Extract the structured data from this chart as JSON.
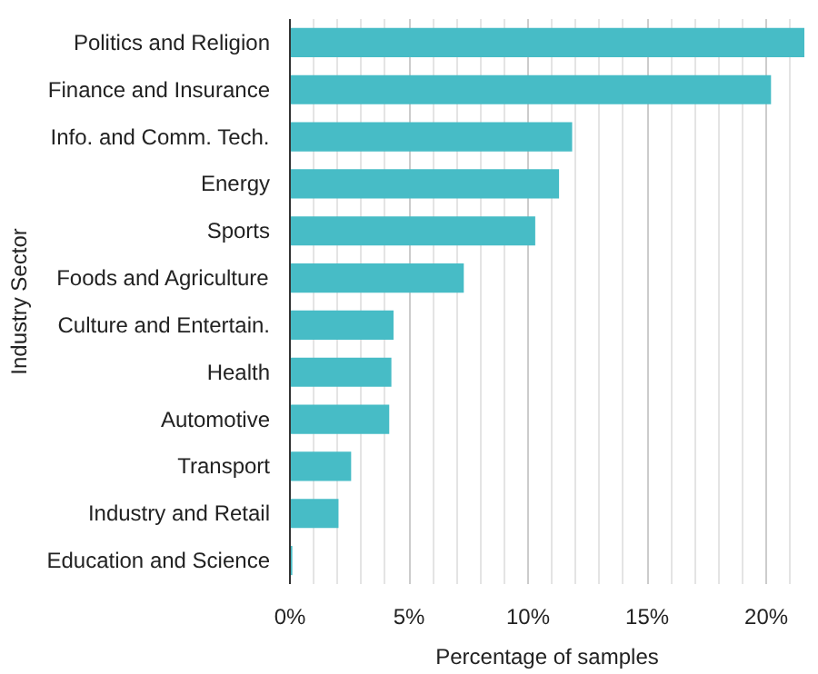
{
  "chart_data": {
    "type": "bar",
    "orientation": "horizontal",
    "xlabel": "Percentage of samples",
    "ylabel": "Industry Sector",
    "categories": [
      "Politics and Religion",
      "Finance and Insurance",
      "Info. and Comm. Tech.",
      "Energy",
      "Sports",
      "Foods and Agriculture",
      "Culture and Entertain.",
      "Health",
      "Automotive",
      "Transport",
      "Industry and Retail",
      "Education and Science"
    ],
    "values": [
      21.6,
      20.2,
      11.85,
      11.3,
      10.3,
      7.3,
      4.35,
      4.26,
      4.17,
      2.57,
      2.04,
      0.1
    ],
    "color": "#47bcc6",
    "xlim": [
      0,
      21.6
    ],
    "xticks": [
      {
        "value": 0,
        "label": "0%"
      },
      {
        "value": 1,
        "label": null
      },
      {
        "value": 2,
        "label": null
      },
      {
        "value": 3,
        "label": null
      },
      {
        "value": 4,
        "label": null
      },
      {
        "value": 5,
        "label": "5%"
      },
      {
        "value": 6,
        "label": null
      },
      {
        "value": 7,
        "label": null
      },
      {
        "value": 8,
        "label": null
      },
      {
        "value": 9,
        "label": null
      },
      {
        "value": 10,
        "label": "10%"
      },
      {
        "value": 11,
        "label": null
      },
      {
        "value": 12,
        "label": null
      },
      {
        "value": 13,
        "label": null
      },
      {
        "value": 14,
        "label": null
      },
      {
        "value": 15,
        "label": "15%"
      },
      {
        "value": 16,
        "label": null
      },
      {
        "value": 17,
        "label": null
      },
      {
        "value": 18,
        "label": null
      },
      {
        "value": 19,
        "label": null
      },
      {
        "value": 20,
        "label": "20%"
      },
      {
        "value": 21,
        "label": null
      }
    ],
    "grid": "x"
  }
}
